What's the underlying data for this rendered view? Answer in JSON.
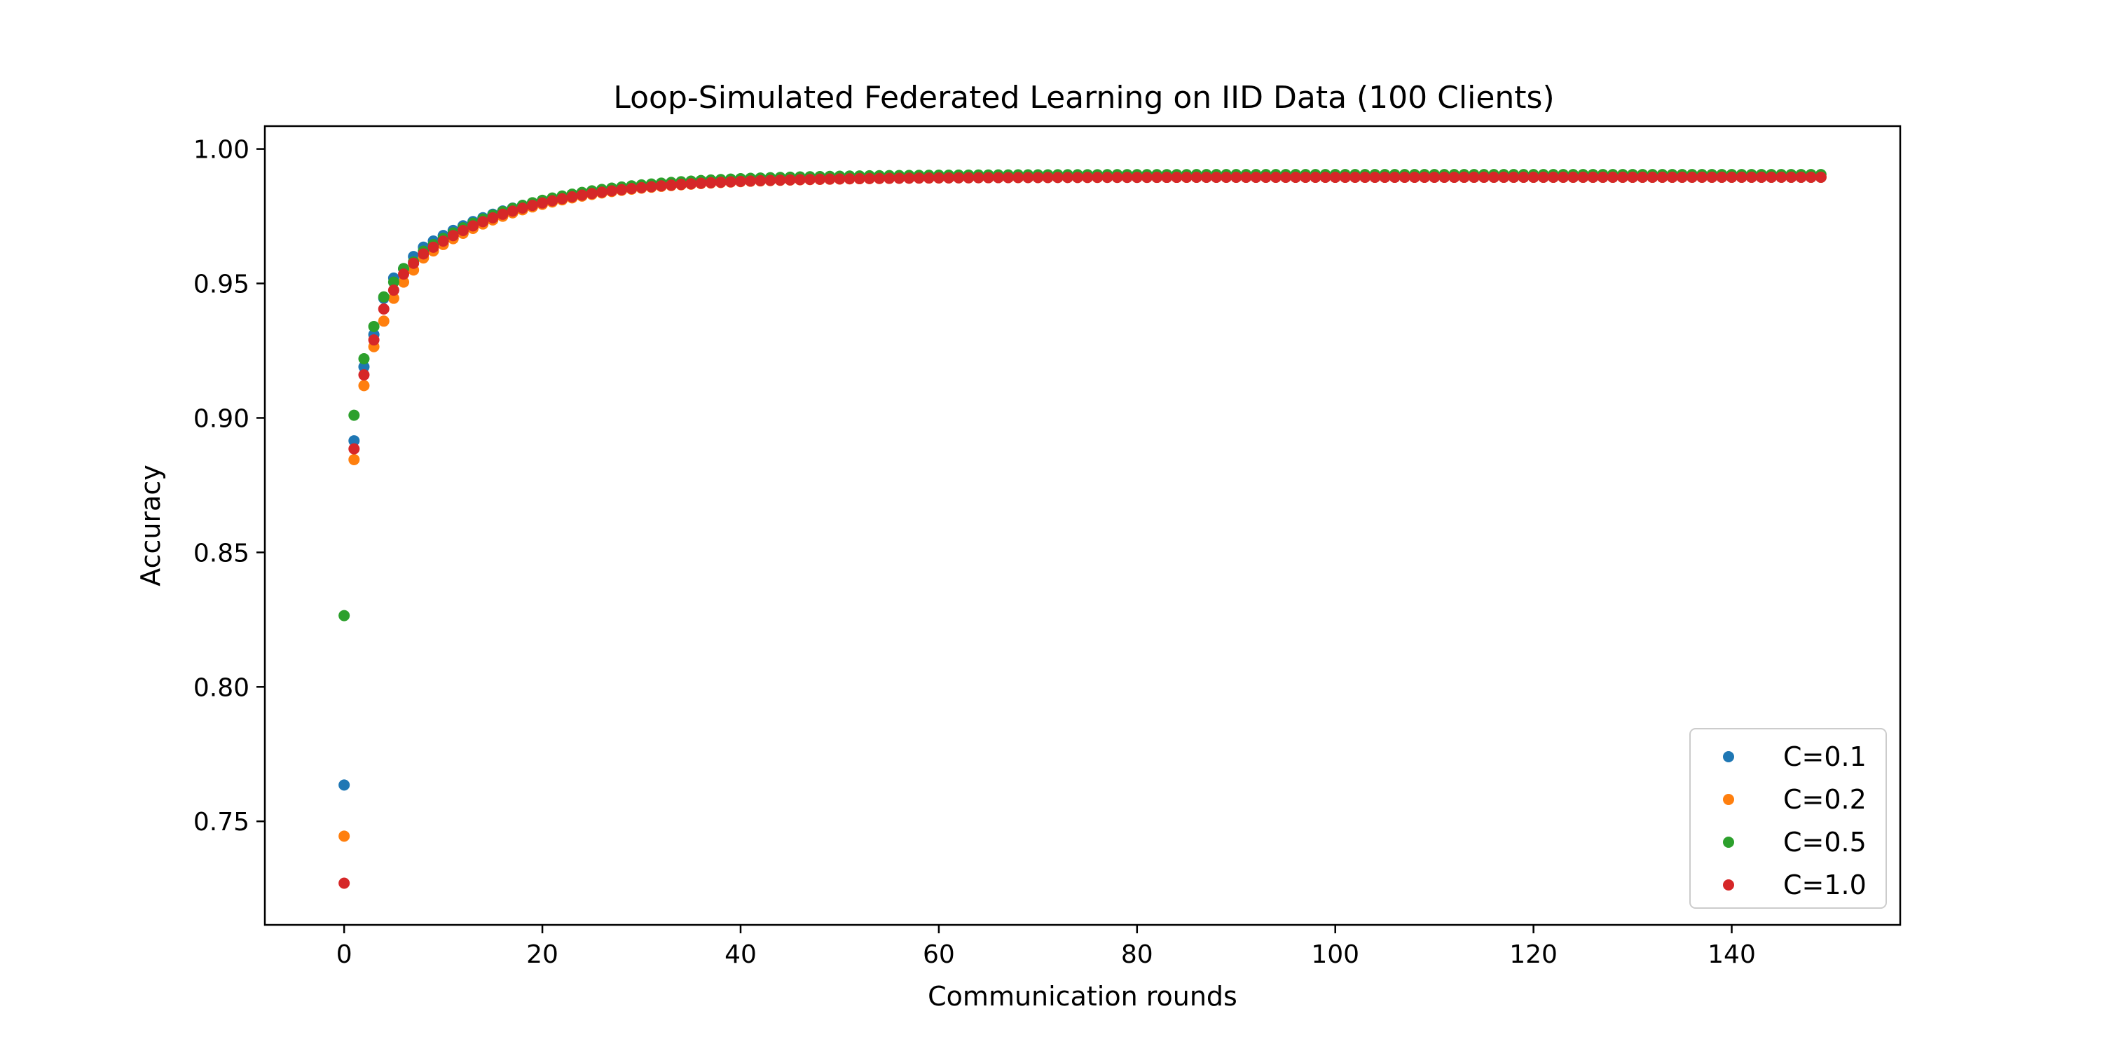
{
  "chart_data": {
    "type": "scatter",
    "title": "Loop-Simulated Federated Learning on IID Data (100 Clients)",
    "xlabel": "Communication rounds",
    "ylabel": "Accuracy",
    "xlim": [
      -8,
      157
    ],
    "ylim": [
      0.7115,
      1.0085
    ],
    "x_ticks": [
      0,
      20,
      40,
      60,
      80,
      100,
      120,
      140
    ],
    "x_tick_labels": [
      "0",
      "20",
      "40",
      "60",
      "80",
      "100",
      "120",
      "140"
    ],
    "y_ticks": [
      0.75,
      0.8,
      0.85,
      0.9,
      0.95,
      1.0
    ],
    "y_tick_labels": [
      "0.75",
      "0.80",
      "0.85",
      "0.90",
      "0.95",
      "1.00"
    ],
    "grid": false,
    "legend_position": "lower-right",
    "rounds": 150,
    "series": [
      {
        "name": "C=0.1",
        "color": "#1f77b4",
        "initial": [
          0.7635,
          0.8915,
          0.919,
          0.931,
          0.9445,
          0.952,
          0.9555,
          0.96,
          0.9635
        ],
        "plateau": 0.9895
      },
      {
        "name": "C=0.2",
        "color": "#ff7f0e",
        "initial": [
          0.7445,
          0.8845,
          0.912,
          0.9265,
          0.936,
          0.9445,
          0.9505,
          0.955,
          0.9595
        ],
        "plateau": 0.9895
      },
      {
        "name": "C=0.5",
        "color": "#2ca02c",
        "initial": [
          0.8265,
          0.901,
          0.922,
          0.934,
          0.945,
          0.9505,
          0.9555,
          0.958,
          0.962
        ],
        "plateau": 0.9905
      },
      {
        "name": "C=1.0",
        "color": "#d62728",
        "initial": [
          0.727,
          0.8885,
          0.916,
          0.929,
          0.9405,
          0.9475,
          0.9535,
          0.9575,
          0.961
        ],
        "plateau": 0.9895
      }
    ]
  }
}
